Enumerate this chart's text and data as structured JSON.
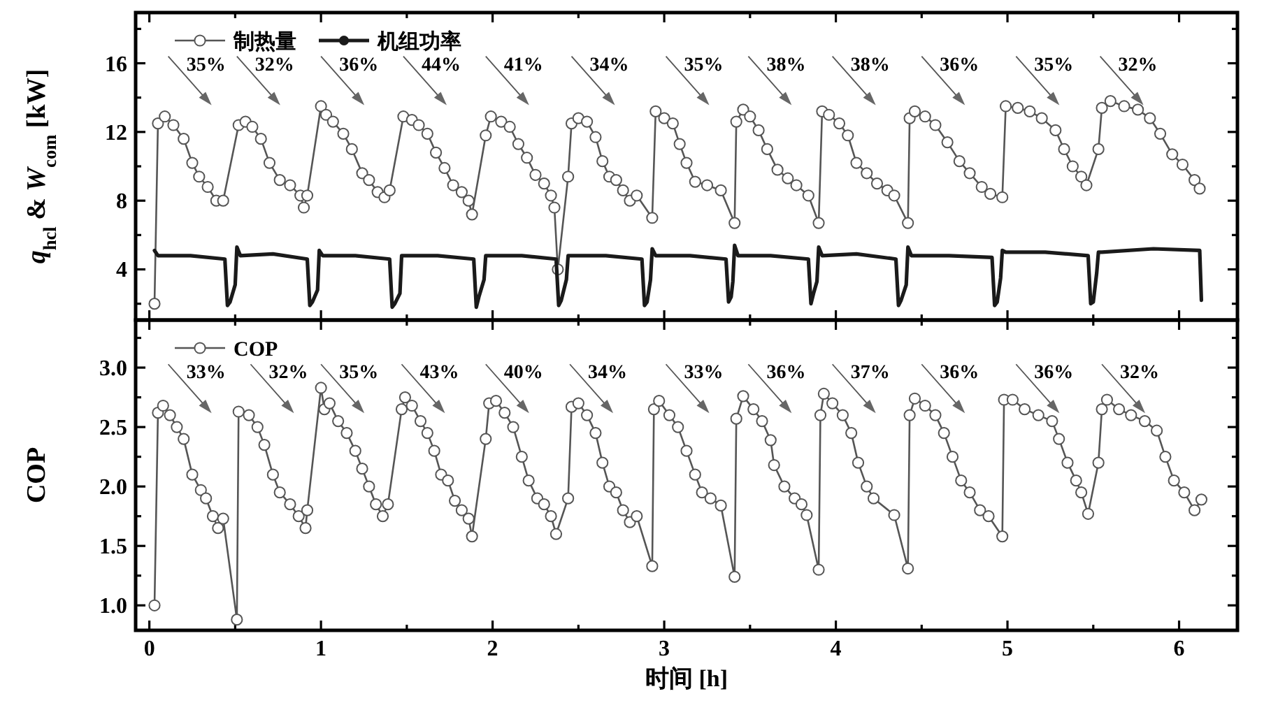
{
  "chart_data": [
    {
      "type": "line",
      "ylabel": "*q*$_{hcl}$ & *W*$_{com}$ [kW]",
      "xlim": [
        -0.08,
        6.34
      ],
      "ylim": [
        1.05,
        18.95
      ],
      "xticks": [
        0,
        {
          "value": 0.5,
          "label": null
        },
        1,
        {
          "value": 1.5,
          "label": null
        },
        2,
        {
          "value": 2.5,
          "label": null
        },
        3,
        {
          "value": 3.5,
          "label": null
        },
        4,
        {
          "value": 4.5,
          "label": null
        },
        5,
        {
          "value": 5.5,
          "label": null
        },
        6
      ],
      "yticks": [
        {
          "value": 2,
          "label": null
        },
        4,
        {
          "value": 6,
          "label": null
        },
        8,
        {
          "value": 10,
          "label": null
        },
        12,
        {
          "value": 14,
          "label": null
        },
        16,
        {
          "value": 18,
          "label": null
        }
      ],
      "tick_labels": "y",
      "legend": "top left",
      "series": [
        {
          "name": "制热量",
          "color": "#555555",
          "marker": "circle",
          "x": [
            0.03,
            0.05,
            0.09,
            0.14,
            0.2,
            0.25,
            0.29,
            0.34,
            0.39,
            0.43,
            0.52,
            0.56,
            0.6,
            0.65,
            0.7,
            0.76,
            0.82,
            0.88,
            0.9,
            0.92,
            1.0,
            1.03,
            1.07,
            1.13,
            1.18,
            1.24,
            1.28,
            1.33,
            1.37,
            1.4,
            1.48,
            1.53,
            1.57,
            1.62,
            1.67,
            1.72,
            1.77,
            1.82,
            1.86,
            1.88,
            1.96,
            1.99,
            2.05,
            2.1,
            2.15,
            2.2,
            2.25,
            2.3,
            2.34,
            2.36,
            2.38,
            2.44,
            2.46,
            2.5,
            2.55,
            2.6,
            2.64,
            2.68,
            2.72,
            2.76,
            2.8,
            2.84,
            2.93,
            2.95,
            3.0,
            3.05,
            3.09,
            3.13,
            3.18,
            3.25,
            3.33,
            3.41,
            3.42,
            3.46,
            3.5,
            3.55,
            3.6,
            3.66,
            3.72,
            3.77,
            3.84,
            3.9,
            3.92,
            3.96,
            4.02,
            4.07,
            4.12,
            4.18,
            4.24,
            4.3,
            4.34,
            4.42,
            4.43,
            4.46,
            4.52,
            4.58,
            4.65,
            4.72,
            4.78,
            4.85,
            4.9,
            4.97,
            4.99,
            5.06,
            5.13,
            5.2,
            5.28,
            5.33,
            5.38,
            5.43,
            5.46,
            5.53,
            5.55,
            5.6,
            5.68,
            5.76,
            5.83,
            5.89,
            5.96,
            6.02,
            6.09,
            6.12
          ],
          "values": [
            2.0,
            12.5,
            12.9,
            12.4,
            11.6,
            10.2,
            9.4,
            8.8,
            8.0,
            8.0,
            12.4,
            12.6,
            12.3,
            11.6,
            10.2,
            9.2,
            8.9,
            8.3,
            7.6,
            8.3,
            13.5,
            13.0,
            12.6,
            11.9,
            11.0,
            9.6,
            9.2,
            8.5,
            8.2,
            8.6,
            12.9,
            12.7,
            12.4,
            11.9,
            10.8,
            9.9,
            8.9,
            8.5,
            8.0,
            7.2,
            11.8,
            12.9,
            12.6,
            12.3,
            11.3,
            10.5,
            9.5,
            9.0,
            8.3,
            7.6,
            4.0,
            9.4,
            12.5,
            12.8,
            12.6,
            11.7,
            10.3,
            9.4,
            9.2,
            8.6,
            8.0,
            8.3,
            7.0,
            13.2,
            12.8,
            12.5,
            11.3,
            10.2,
            9.1,
            8.9,
            8.6,
            6.7,
            12.6,
            13.3,
            12.9,
            12.1,
            11.0,
            9.8,
            9.3,
            8.9,
            8.3,
            6.7,
            13.2,
            13.0,
            12.5,
            11.8,
            10.2,
            9.6,
            9.0,
            8.6,
            8.3,
            6.7,
            12.8,
            13.2,
            12.9,
            12.4,
            11.4,
            10.3,
            9.6,
            8.8,
            8.4,
            8.2,
            13.5,
            13.4,
            13.2,
            12.8,
            12.1,
            11.0,
            10.0,
            9.4,
            8.9,
            11.0,
            13.4,
            13.8,
            13.5,
            13.3,
            12.8,
            11.9,
            10.7,
            10.1,
            9.2,
            8.7
          ]
        },
        {
          "name": "机组功率",
          "color": "#1a1a1a",
          "marker": "none",
          "x": [
            0.03,
            0.05,
            0.24,
            0.44,
            0.455,
            0.47,
            0.5,
            0.51,
            0.53,
            0.72,
            0.92,
            0.935,
            0.95,
            0.98,
            0.99,
            1.01,
            1.2,
            1.4,
            1.415,
            1.43,
            1.46,
            1.47,
            1.49,
            1.68,
            1.89,
            1.905,
            1.92,
            1.95,
            1.96,
            1.98,
            2.17,
            2.37,
            2.385,
            2.4,
            2.43,
            2.44,
            2.46,
            2.66,
            2.87,
            2.885,
            2.9,
            2.92,
            2.93,
            2.95,
            3.15,
            3.36,
            3.375,
            3.39,
            3.4,
            3.41,
            3.43,
            3.62,
            3.84,
            3.855,
            3.87,
            3.89,
            3.9,
            3.92,
            4.12,
            4.35,
            4.365,
            4.38,
            4.41,
            4.42,
            4.44,
            4.66,
            4.91,
            4.925,
            4.94,
            4.96,
            4.97,
            4.99,
            5.22,
            5.47,
            5.485,
            5.5,
            5.52,
            5.53,
            5.55,
            5.85,
            6.12,
            6.13
          ],
          "values": [
            5.1,
            4.8,
            4.8,
            4.6,
            1.9,
            2.1,
            3.1,
            5.3,
            4.8,
            4.9,
            4.6,
            1.9,
            2.1,
            2.8,
            5.1,
            4.8,
            4.8,
            4.6,
            1.8,
            2.0,
            2.6,
            4.8,
            4.8,
            4.8,
            4.6,
            1.8,
            2.4,
            3.4,
            4.8,
            4.8,
            4.8,
            4.6,
            1.9,
            2.2,
            3.4,
            4.8,
            4.8,
            4.8,
            4.6,
            1.9,
            2.1,
            3.4,
            5.2,
            4.8,
            4.8,
            4.6,
            2.1,
            2.4,
            3.3,
            5.4,
            4.8,
            4.8,
            4.6,
            2.0,
            2.6,
            3.3,
            5.3,
            4.8,
            4.9,
            4.6,
            1.9,
            2.2,
            3.1,
            5.3,
            4.8,
            4.8,
            4.7,
            1.9,
            2.1,
            3.5,
            5.1,
            5.0,
            5.0,
            4.8,
            2.0,
            2.1,
            3.8,
            5.0,
            5.0,
            5.2,
            5.1,
            2.2
          ]
        }
      ],
      "annotations": [
        "35%",
        "32%",
        "36%",
        "44%",
        "41%",
        "34%",
        "35%",
        "38%",
        "38%",
        "36%",
        "35%",
        "32%"
      ]
    },
    {
      "type": "line",
      "ylabel": "COP",
      "xlabel": "时间 [h]",
      "xlim": [
        -0.08,
        6.34
      ],
      "ylim": [
        0.79,
        3.4
      ],
      "xticks": [
        0,
        {
          "value": 0.5,
          "label": null
        },
        1,
        {
          "value": 1.5,
          "label": null
        },
        2,
        {
          "value": 2.5,
          "label": null
        },
        3,
        {
          "value": 3.5,
          "label": null
        },
        4,
        {
          "value": 4.5,
          "label": null
        },
        5,
        {
          "value": 5.5,
          "label": null
        },
        6
      ],
      "yticks": [
        {
          "value": 1,
          "label": "1.0"
        },
        {
          "value": 1.25,
          "label": null
        },
        {
          "value": 1.5,
          "label": "1.5"
        },
        {
          "value": 1.75,
          "label": null
        },
        {
          "value": 2,
          "label": "2.0"
        },
        {
          "value": 2.25,
          "label": null
        },
        {
          "value": 2.5,
          "label": "2.5"
        },
        {
          "value": 2.75,
          "label": null
        },
        {
          "value": 3,
          "label": "3.0"
        },
        {
          "value": 3.25,
          "label": null
        }
      ],
      "legend": "top left",
      "series": [
        {
          "name": "COP",
          "color": "#555555",
          "marker": "circle",
          "x": [
            0.03,
            0.05,
            0.08,
            0.12,
            0.16,
            0.2,
            0.25,
            0.3,
            0.33,
            0.37,
            0.4,
            0.43,
            0.51,
            0.52,
            0.58,
            0.63,
            0.67,
            0.72,
            0.76,
            0.82,
            0.87,
            0.91,
            0.92,
            1.0,
            1.02,
            1.05,
            1.1,
            1.15,
            1.2,
            1.24,
            1.28,
            1.32,
            1.36,
            1.39,
            1.47,
            1.49,
            1.53,
            1.58,
            1.62,
            1.66,
            1.7,
            1.74,
            1.78,
            1.82,
            1.86,
            1.88,
            1.96,
            1.98,
            2.02,
            2.07,
            2.12,
            2.17,
            2.21,
            2.26,
            2.3,
            2.34,
            2.37,
            2.44,
            2.46,
            2.5,
            2.55,
            2.6,
            2.64,
            2.68,
            2.72,
            2.76,
            2.8,
            2.84,
            2.93,
            2.94,
            2.97,
            3.03,
            3.08,
            3.13,
            3.18,
            3.22,
            3.27,
            3.33,
            3.41,
            3.42,
            3.46,
            3.52,
            3.57,
            3.62,
            3.64,
            3.7,
            3.76,
            3.8,
            3.83,
            3.9,
            3.91,
            3.93,
            3.98,
            4.04,
            4.09,
            4.13,
            4.18,
            4.22,
            4.34,
            4.42,
            4.43,
            4.46,
            4.52,
            4.58,
            4.63,
            4.68,
            4.73,
            4.78,
            4.84,
            4.89,
            4.97,
            4.98,
            5.03,
            5.1,
            5.18,
            5.26,
            5.3,
            5.35,
            5.4,
            5.43,
            5.47,
            5.53,
            5.55,
            5.58,
            5.65,
            5.72,
            5.8,
            5.87,
            5.92,
            5.97,
            6.03,
            6.09,
            6.13
          ],
          "values": [
            1.0,
            2.62,
            2.68,
            2.6,
            2.5,
            2.4,
            2.1,
            1.97,
            1.9,
            1.75,
            1.65,
            1.73,
            0.88,
            2.63,
            2.6,
            2.5,
            2.35,
            2.1,
            1.95,
            1.85,
            1.75,
            1.65,
            1.8,
            2.83,
            2.65,
            2.7,
            2.55,
            2.45,
            2.3,
            2.15,
            2.0,
            1.85,
            1.75,
            1.85,
            2.65,
            2.75,
            2.68,
            2.55,
            2.45,
            2.3,
            2.1,
            2.05,
            1.88,
            1.8,
            1.73,
            1.58,
            2.4,
            2.7,
            2.72,
            2.62,
            2.5,
            2.25,
            2.05,
            1.9,
            1.85,
            1.75,
            1.6,
            1.9,
            2.67,
            2.7,
            2.6,
            2.45,
            2.2,
            2.0,
            1.95,
            1.8,
            1.7,
            1.75,
            1.33,
            2.65,
            2.72,
            2.6,
            2.5,
            2.3,
            2.1,
            1.95,
            1.9,
            1.84,
            1.24,
            2.57,
            2.76,
            2.65,
            2.55,
            2.39,
            2.18,
            2.0,
            1.9,
            1.85,
            1.76,
            1.3,
            2.6,
            2.78,
            2.7,
            2.6,
            2.45,
            2.2,
            2.0,
            1.9,
            1.76,
            1.31,
            2.6,
            2.74,
            2.68,
            2.6,
            2.45,
            2.25,
            2.05,
            1.95,
            1.8,
            1.75,
            1.58,
            2.73,
            2.73,
            2.65,
            2.6,
            2.55,
            2.4,
            2.2,
            2.05,
            1.95,
            1.77,
            2.2,
            2.65,
            2.73,
            2.65,
            2.6,
            2.55,
            2.47,
            2.25,
            2.05,
            1.95,
            1.8,
            1.89
          ]
        }
      ],
      "annotations": [
        "33%",
        "32%",
        "35%",
        "43%",
        "40%",
        "34%",
        "33%",
        "36%",
        "37%",
        "36%",
        "36%",
        "32%"
      ]
    }
  ]
}
